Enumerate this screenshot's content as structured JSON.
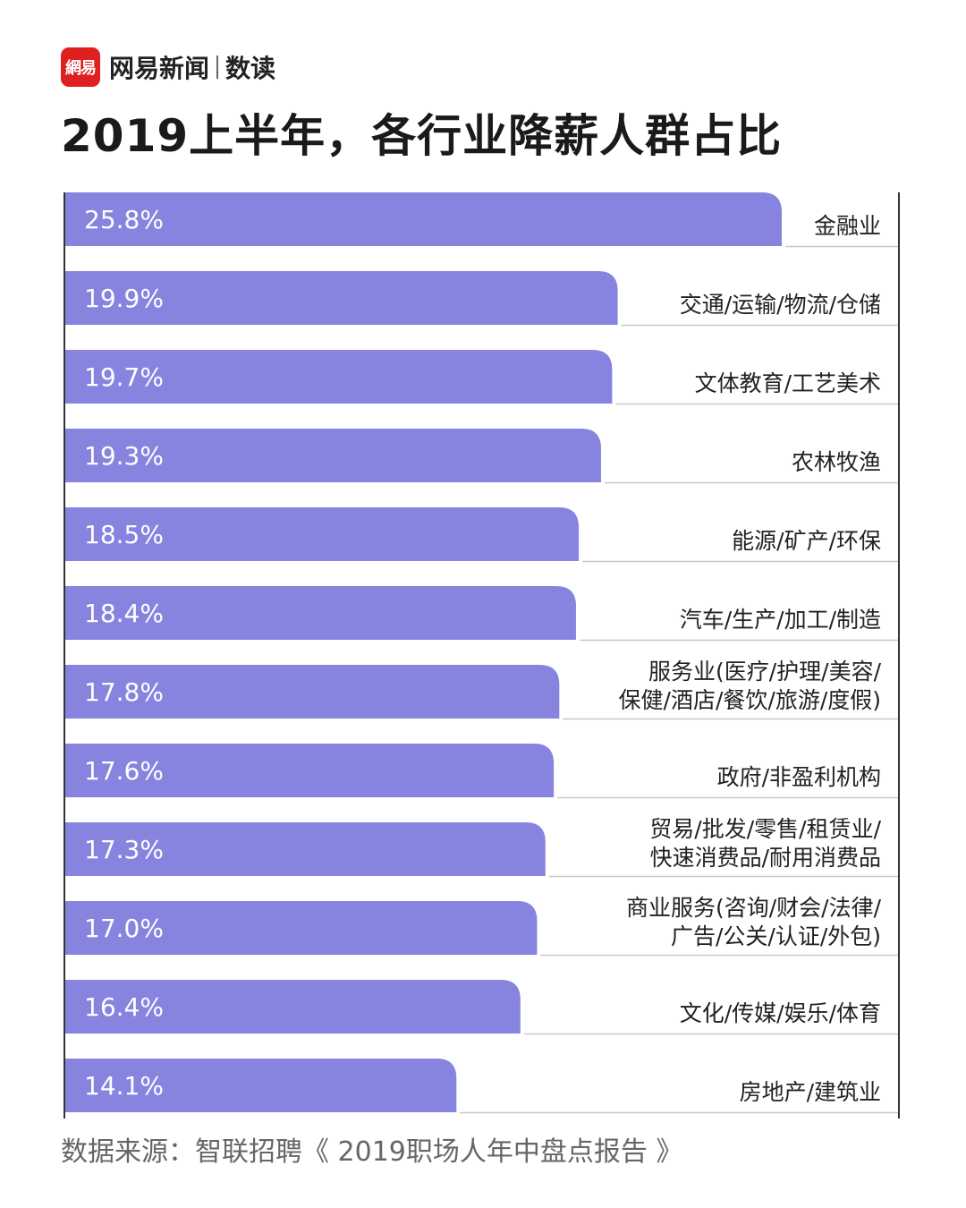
{
  "brand": {
    "logo_text": "網易",
    "name": "网易新闻",
    "sub": "数读"
  },
  "title": "2019上半年，各行业降薪人群占比",
  "source": "数据来源：智联招聘《 2019职场人年中盘点报告 》",
  "colors": {
    "bar": "#8684df",
    "bar_text": "#ffffff",
    "label": "#222222",
    "divider": "#c8c8c8",
    "axis": "#333333"
  },
  "chart_data": {
    "type": "bar",
    "orientation": "horizontal",
    "title": "2019上半年，各行业降薪人群占比",
    "unit": "%",
    "xlim": [
      0,
      30
    ],
    "categories": [
      [
        "金融业"
      ],
      [
        "交通/运输/物流/仓储"
      ],
      [
        "文体教育/工艺美术"
      ],
      [
        "农林牧渔"
      ],
      [
        "能源/矿产/环保"
      ],
      [
        "汽车/生产/加工/制造"
      ],
      [
        "服务业(医疗/护理/美容/",
        "保健/酒店/餐饮/旅游/度假)"
      ],
      [
        "政府/非盈利机构"
      ],
      [
        "贸易/批发/零售/租赁业/",
        "快速消费品/耐用消费品"
      ],
      [
        "商业服务(咨询/财会/法律/",
        "广告/公关/认证/外包)"
      ],
      [
        "文化/传媒/娱乐/体育"
      ],
      [
        "房地产/建筑业"
      ]
    ],
    "values": [
      25.8,
      19.9,
      19.7,
      19.3,
      18.5,
      18.4,
      17.8,
      17.6,
      17.3,
      17.0,
      16.4,
      14.1
    ],
    "value_labels": [
      "25.8%",
      "19.9%",
      "19.7%",
      "19.3%",
      "18.5%",
      "18.4%",
      "17.8%",
      "17.6%",
      "17.3%",
      "17.0%",
      "16.4%",
      "14.1%"
    ]
  }
}
